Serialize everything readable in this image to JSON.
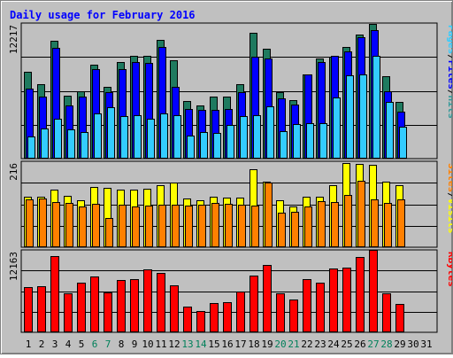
{
  "chart_data": {
    "title": "Daily usage for February 2016",
    "type": "bar",
    "days": [
      "1",
      "2",
      "3",
      "4",
      "5",
      "6",
      "7",
      "8",
      "9",
      "10",
      "11",
      "12",
      "13",
      "14",
      "15",
      "16",
      "17",
      "18",
      "19",
      "20",
      "21",
      "22",
      "23",
      "24",
      "25",
      "26",
      "27",
      "28",
      "29",
      "30",
      "31"
    ],
    "weekend_days": [
      "6",
      "7",
      "13",
      "14",
      "20",
      "21",
      "27",
      "28"
    ],
    "panels": [
      {
        "id": "traffic",
        "ymax_label": "12217",
        "ymax": 12217,
        "side_labels": [
          {
            "text": "Hits",
            "color": "#339999"
          },
          {
            "text": "/",
            "color": "#000000"
          },
          {
            "text": "Files",
            "color": "#0000ff"
          },
          {
            "text": "/",
            "color": "#000000"
          },
          {
            "text": "Pages",
            "color": "#33ccff"
          }
        ],
        "series": [
          {
            "name": "Hits",
            "color": "#1f7a5f",
            "values": [
              7800,
              6700,
              10600,
              5700,
              6100,
              8500,
              6500,
              8700,
              9300,
              9300,
              10700,
              8900,
              5200,
              4800,
              5600,
              5600,
              6700,
              11300,
              9900,
              6000,
              5300,
              7600,
              9000,
              9200,
              10100,
              11200,
              12100,
              7400,
              5100,
              0,
              0
            ]
          },
          {
            "name": "Files",
            "color": "#0000ff",
            "values": [
              6300,
              5600,
              10000,
              4800,
              5600,
              8100,
              6000,
              8100,
              8700,
              8600,
              10100,
              6500,
              4500,
              4400,
              4400,
              4500,
              6000,
              9200,
              9000,
              5400,
              4900,
              7600,
              8700,
              9300,
              9700,
              10900,
              11600,
              6100,
              4200,
              0,
              0
            ]
          },
          {
            "name": "Pages",
            "color": "#33ccff",
            "values": [
              2000,
              2700,
              3600,
              2600,
              2400,
              4100,
              4600,
              3800,
              3900,
              3600,
              4100,
              3900,
              2100,
              2400,
              2300,
              3000,
              3800,
              3900,
              4700,
              2500,
              3100,
              3200,
              3200,
              5500,
              7500,
              7600,
              9300,
              5100,
              2900,
              0,
              0
            ]
          }
        ]
      },
      {
        "id": "visitors",
        "ymax_label": "216",
        "ymax": 216,
        "side_labels": [
          {
            "text": "Visits",
            "color": "#ffff00"
          },
          {
            "text": "/",
            "color": "#000000"
          },
          {
            "text": "Sites",
            "color": "#ff8000"
          }
        ],
        "series": [
          {
            "name": "Visits",
            "color": "#ffff00",
            "values": [
              126,
              126,
              144,
              129,
              117,
              152,
              150,
              144,
              144,
              148,
              156,
              163,
              122,
              118,
              127,
              124,
              124,
              196,
              164,
              117,
              103,
              128,
              126,
              156,
              211,
              209,
              207,
              165,
              156,
              0,
              0
            ]
          },
          {
            "name": "Sites",
            "color": "#ff8000",
            "values": [
              120,
              122,
              114,
              112,
              103,
              110,
              73,
              106,
              102,
              105,
              107,
              107,
              104,
              106,
              112,
              108,
              106,
              104,
              163,
              87,
              90,
              103,
              115,
              114,
              131,
              168,
              120,
              112,
              120,
              0,
              0
            ]
          }
        ]
      },
      {
        "id": "kbytes",
        "ymax_label": "12163",
        "ymax": 12163,
        "side_labels": [
          {
            "text": "KBytes",
            "color": "#ff0000"
          }
        ],
        "series": [
          {
            "name": "KBytes",
            "color": "#ff0000",
            "values": [
              6700,
              6800,
              11300,
              5800,
              7300,
              8200,
              5900,
              7700,
              7900,
              9300,
              8800,
              6900,
              3800,
              3200,
              4300,
              4400,
              6000,
              8400,
              10000,
              5800,
              4900,
              7800,
              7300,
              9400,
              9500,
              11100,
              12163,
              5800,
              4200,
              0,
              0
            ]
          }
        ]
      }
    ]
  }
}
